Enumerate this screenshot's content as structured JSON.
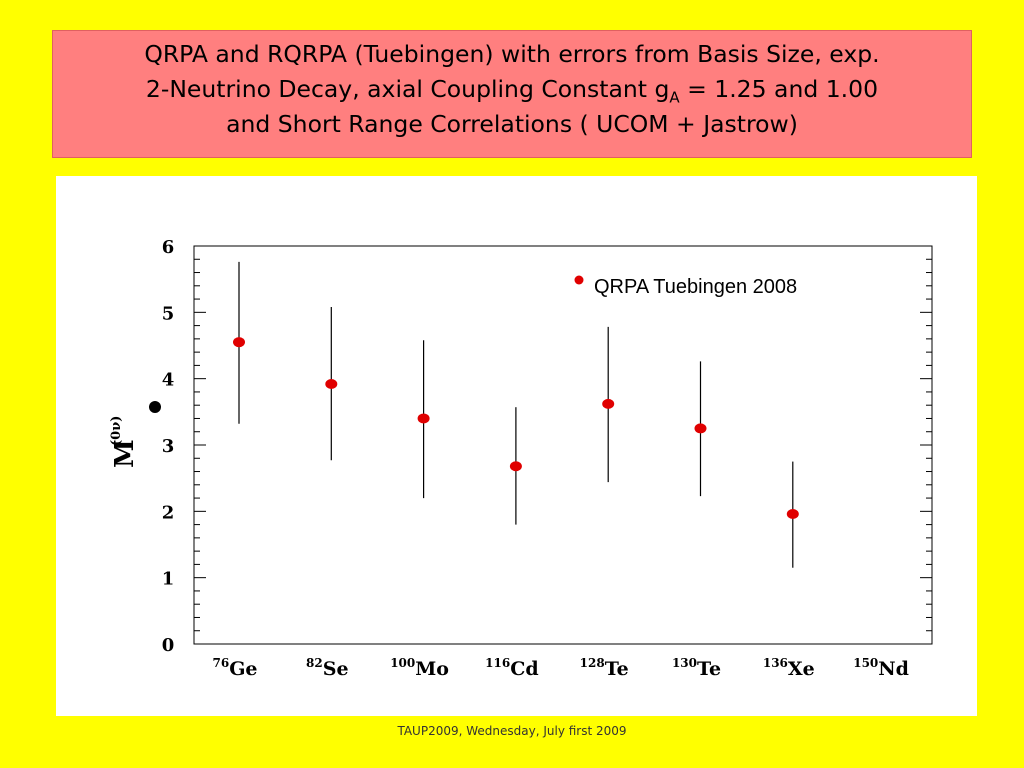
{
  "slide": {
    "title_line1": "QRPA and RQRPA (Tuebingen)  with errors from Basis Size, exp.",
    "title_line2_pre": "2-Neutrino  Decay, axial Coupling Constant  g",
    "title_line2_sub": "A",
    "title_line2_post": "  = 1.25 and 1.00",
    "title_line3": "and Short Range Correlations ( UCOM + Jastrow)",
    "footer": "TAUP2009, Wednesday, July first 2009"
  },
  "colors": {
    "background": "#FFFF00",
    "title_box": "#FF7F7F",
    "marker": "#E00000"
  },
  "chart_data": {
    "type": "scatter",
    "title": "",
    "xlabel": "",
    "ylabel_main": "M",
    "ylabel_sup": "(0ν)",
    "ylim": [
      0,
      6
    ],
    "yticks": [
      0,
      1,
      2,
      3,
      4,
      5,
      6
    ],
    "grid": false,
    "legend_position": "top-right",
    "categories": [
      {
        "mass": "76",
        "element": "Ge"
      },
      {
        "mass": "82",
        "element": "Se"
      },
      {
        "mass": "100",
        "element": "Mo"
      },
      {
        "mass": "116",
        "element": "Cd"
      },
      {
        "mass": "128",
        "element": "Te"
      },
      {
        "mass": "130",
        "element": "Te"
      },
      {
        "mass": "136",
        "element": "Xe"
      },
      {
        "mass": "150",
        "element": "Nd"
      }
    ],
    "series": [
      {
        "name": "QRPA Tuebingen 2008",
        "values": [
          4.55,
          3.92,
          3.4,
          2.68,
          3.62,
          3.25,
          1.96,
          null
        ],
        "err_low": [
          3.32,
          2.77,
          2.2,
          1.8,
          2.44,
          2.23,
          1.15,
          null
        ],
        "err_high": [
          5.76,
          5.08,
          4.58,
          3.57,
          4.78,
          4.26,
          2.75,
          null
        ]
      }
    ]
  }
}
